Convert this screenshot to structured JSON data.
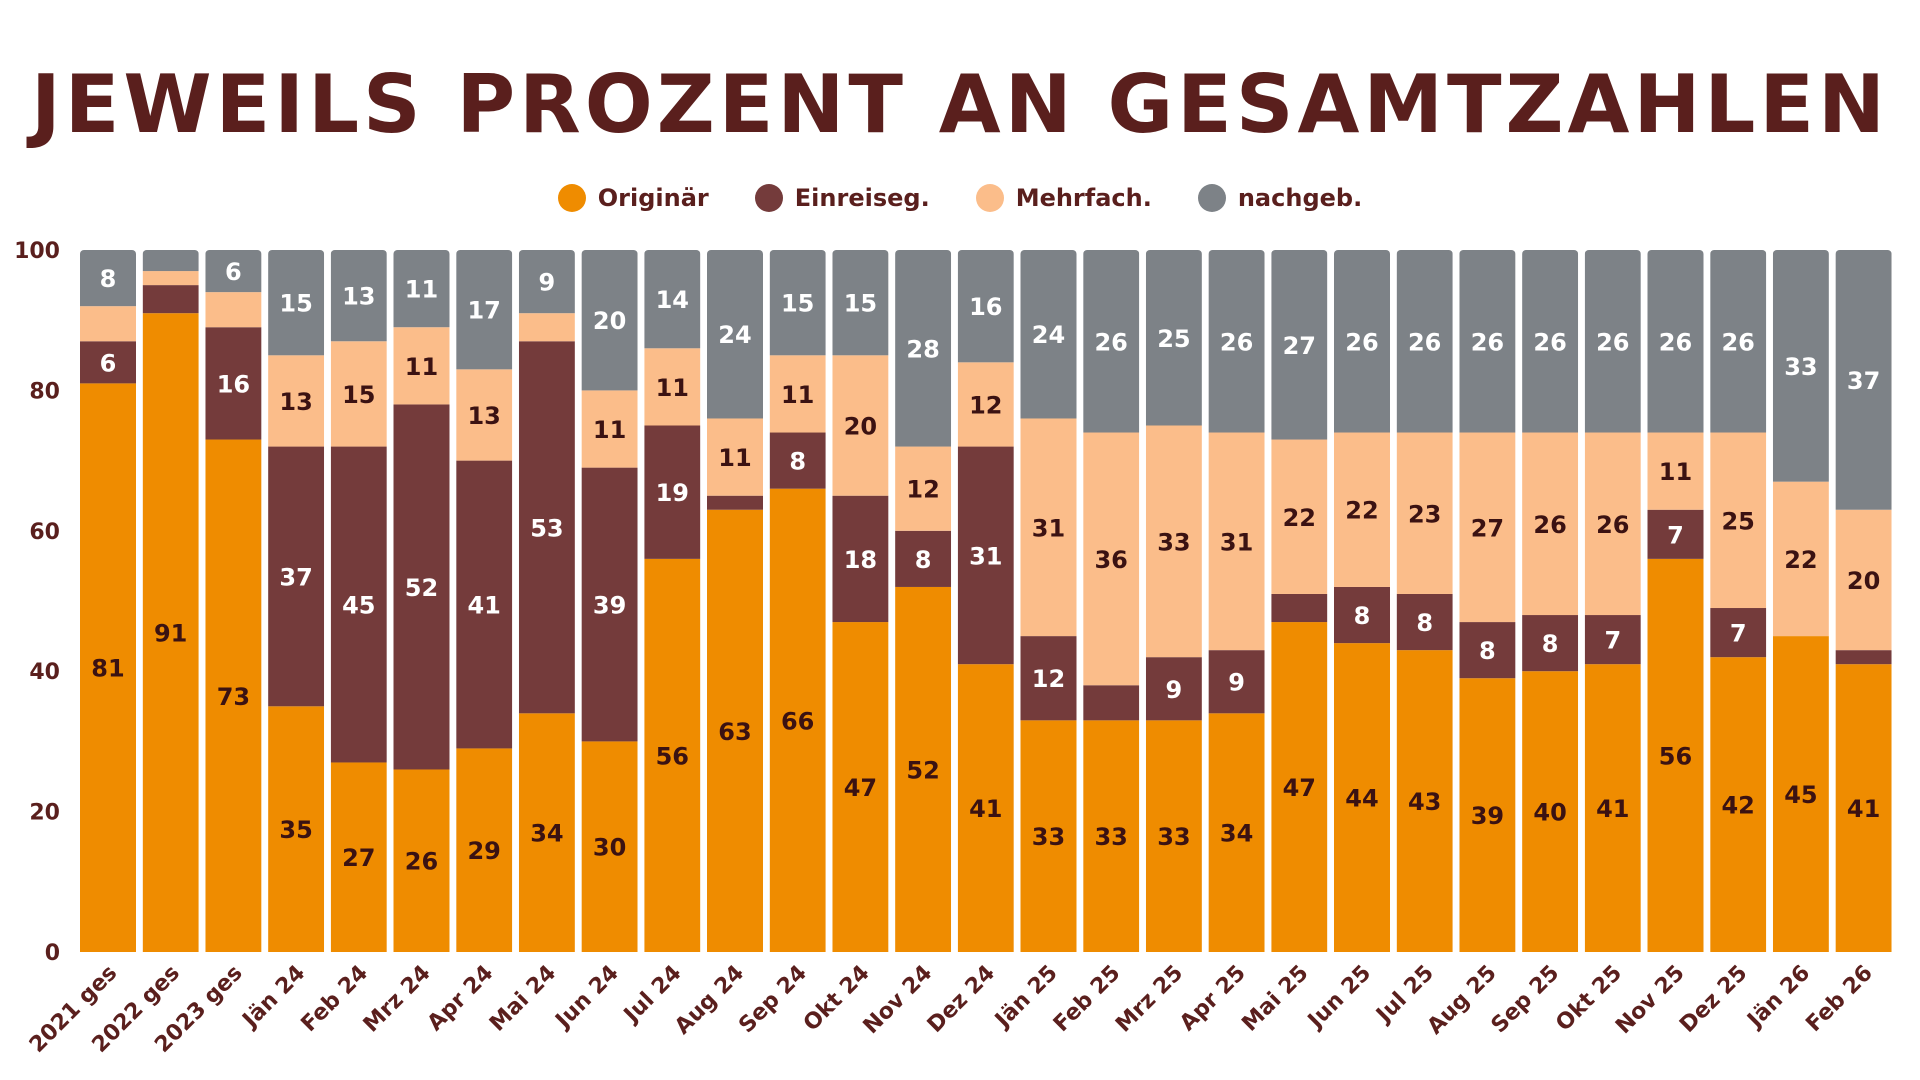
{
  "chart_data": {
    "type": "bar",
    "stacked": true,
    "title": "JEWEILS PROZENT AN GESAMTZAHLEN",
    "ylim": [
      0,
      100
    ],
    "yticks": [
      "0",
      "20",
      "40",
      "60",
      "80",
      "100"
    ],
    "grid": false,
    "legend_position": "top",
    "categories": [
      "2021 ges",
      "2022 ges",
      "2023 ges",
      "Jän 24",
      "Feb 24",
      "Mrz 24",
      "Apr 24",
      "Mai 24",
      "Jun 24",
      "Jul 24",
      "Aug 24",
      "Sep 24",
      "Okt 24",
      "Nov 24",
      "Dez 24",
      "Jän 25",
      "Feb 25",
      "Mrz 25",
      "Apr 25",
      "Mai 25",
      "Jun 25",
      "Jul 25",
      "Aug 25",
      "Sep 25",
      "Okt 25",
      "Nov 25",
      "Dez 25",
      "Jän 26",
      "Feb 26"
    ],
    "series": [
      {
        "name": "Originär",
        "color": "#ef8c00",
        "label_color": "#3b1212",
        "values": [
          81,
          91,
          73,
          35,
          27,
          26,
          29,
          34,
          30,
          56,
          63,
          66,
          47,
          52,
          41,
          33,
          33,
          33,
          34,
          47,
          44,
          43,
          39,
          40,
          41,
          56,
          42,
          45,
          41
        ],
        "labels": [
          "81",
          "91",
          "73",
          "35",
          "27",
          "26",
          "29",
          "34",
          "30",
          "56",
          "63",
          "66",
          "47",
          "52",
          "41",
          "33",
          "33",
          "33",
          "34",
          "47",
          "44",
          "43",
          "39",
          "40",
          "41",
          "56",
          "42",
          "45",
          "41"
        ]
      },
      {
        "name": "Einreiseg.",
        "color": "#743b3b",
        "label_color": "#ffffff",
        "values": [
          6,
          4,
          16,
          37,
          45,
          52,
          41,
          53,
          39,
          19,
          2,
          8,
          18,
          8,
          31,
          12,
          5,
          9,
          9,
          4,
          8,
          8,
          8,
          8,
          7,
          7,
          7,
          0,
          2
        ],
        "labels": [
          "6",
          "",
          "16",
          "37",
          "45",
          "52",
          "41",
          "53",
          "39",
          "19",
          "",
          "8",
          "18",
          "8",
          "31",
          "12",
          "",
          "9",
          "9",
          "",
          "8",
          "8",
          "8",
          "8",
          "7",
          "7",
          "7",
          "",
          ""
        ]
      },
      {
        "name": "Mehrfach.",
        "color": "#fbbd8a",
        "label_color": "#3b1212",
        "values": [
          5,
          2,
          5,
          13,
          15,
          11,
          13,
          4,
          11,
          11,
          11,
          11,
          20,
          12,
          12,
          31,
          36,
          33,
          31,
          22,
          22,
          23,
          27,
          26,
          26,
          11,
          25,
          22,
          20
        ],
        "labels": [
          "",
          "",
          "",
          "13",
          "15",
          "11",
          "13",
          "",
          "11",
          "11",
          "11",
          "11",
          "20",
          "12",
          "12",
          "31",
          "36",
          "33",
          "31",
          "22",
          "22",
          "23",
          "27",
          "26",
          "26",
          "11",
          "25",
          "22",
          "20"
        ]
      },
      {
        "name": "nachgeb.",
        "color": "#7d8287",
        "label_color": "#ffffff",
        "values": [
          8,
          3,
          6,
          15,
          13,
          11,
          17,
          9,
          20,
          14,
          24,
          15,
          15,
          28,
          16,
          24,
          26,
          25,
          26,
          27,
          26,
          26,
          26,
          26,
          26,
          26,
          26,
          33,
          37
        ],
        "labels": [
          "8",
          "",
          "6",
          "15",
          "13",
          "11",
          "17",
          "9",
          "20",
          "14",
          "24",
          "15",
          "15",
          "28",
          "16",
          "24",
          "26",
          "25",
          "26",
          "27",
          "26",
          "26",
          "26",
          "26",
          "26",
          "26",
          "26",
          "33",
          "37"
        ]
      }
    ]
  }
}
